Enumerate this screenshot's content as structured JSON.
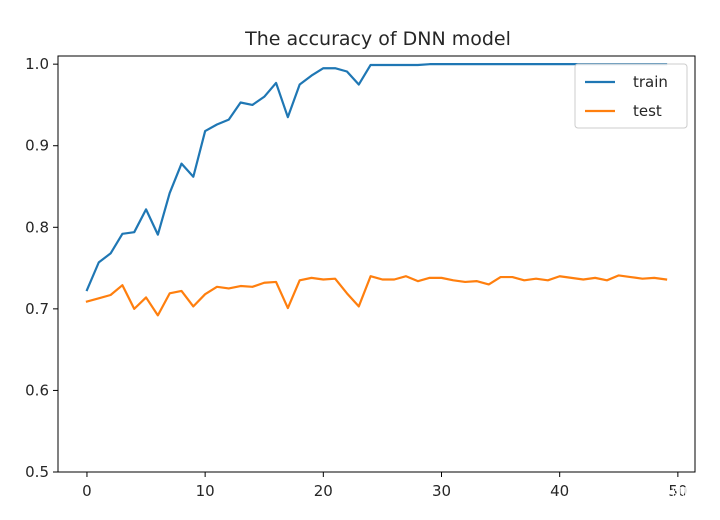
{
  "chart_data": {
    "type": "line",
    "title": "The accuracy of DNN model",
    "xlabel": "",
    "ylabel": "",
    "xlim": [
      -2.45,
      51.45
    ],
    "ylim": [
      0.5,
      1.01
    ],
    "xticks": [
      0,
      10,
      20,
      30,
      40,
      50
    ],
    "xtick_labels": [
      "0",
      "10",
      "20",
      "30",
      "40",
      "50"
    ],
    "yticks": [
      0.5,
      0.6,
      0.7,
      0.8,
      0.9,
      1.0
    ],
    "ytick_labels": [
      "0.5",
      "0.6",
      "0.7",
      "0.8",
      "0.9",
      "1.0"
    ],
    "grid": false,
    "legend_position": "top-right",
    "x": [
      0,
      1,
      2,
      3,
      4,
      5,
      6,
      7,
      8,
      9,
      10,
      11,
      12,
      13,
      14,
      15,
      16,
      17,
      18,
      19,
      20,
      21,
      22,
      23,
      24,
      25,
      26,
      27,
      28,
      29,
      30,
      31,
      32,
      33,
      34,
      35,
      36,
      37,
      38,
      39,
      40,
      41,
      42,
      43,
      44,
      45,
      46,
      47,
      48,
      49
    ],
    "series": [
      {
        "name": "train",
        "color": "#1f77b4",
        "values": [
          0.723,
          0.757,
          0.768,
          0.792,
          0.794,
          0.822,
          0.791,
          0.842,
          0.878,
          0.862,
          0.918,
          0.926,
          0.932,
          0.953,
          0.95,
          0.96,
          0.977,
          0.935,
          0.975,
          0.986,
          0.995,
          0.995,
          0.991,
          0.975,
          0.999,
          0.999,
          0.999,
          0.999,
          0.999,
          1.0,
          1.0,
          1.0,
          1.0,
          1.0,
          1.0,
          1.0,
          1.0,
          1.0,
          1.0,
          1.0,
          1.0,
          1.0,
          1.0,
          1.0,
          1.0,
          1.0,
          1.0,
          1.0,
          1.0,
          1.0
        ]
      },
      {
        "name": "test",
        "color": "#ff7f0e",
        "values": [
          0.709,
          0.713,
          0.717,
          0.729,
          0.7,
          0.714,
          0.692,
          0.719,
          0.722,
          0.703,
          0.718,
          0.727,
          0.725,
          0.728,
          0.727,
          0.732,
          0.733,
          0.701,
          0.735,
          0.738,
          0.736,
          0.737,
          0.719,
          0.703,
          0.74,
          0.736,
          0.736,
          0.74,
          0.734,
          0.738,
          0.738,
          0.735,
          0.733,
          0.734,
          0.73,
          0.739,
          0.739,
          0.735,
          0.737,
          0.735,
          0.74,
          0.738,
          0.736,
          0.738,
          0.735,
          0.741,
          0.739,
          0.737,
          0.738,
          0.736
        ]
      }
    ]
  },
  "watermark": "知乎 @天雨栗"
}
